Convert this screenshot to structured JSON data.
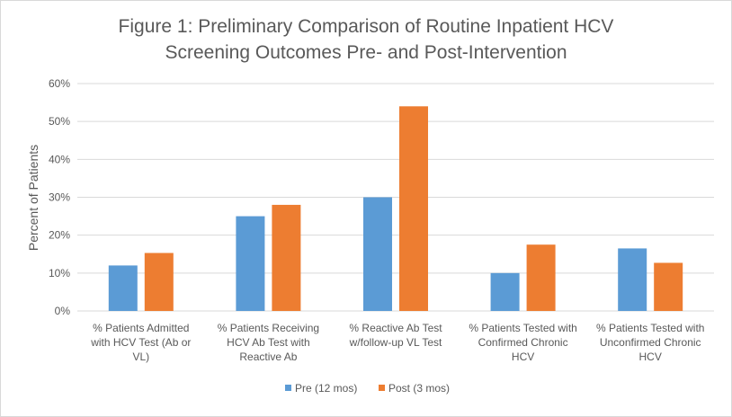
{
  "chart_data": {
    "type": "bar",
    "title_lines": [
      "Figure 1: Preliminary Comparison of Routine Inpatient HCV",
      "Screening Outcomes Pre- and Post-Intervention"
    ],
    "ylabel": "Percent of Patients",
    "xlabel": "",
    "ylim": [
      0,
      0.6
    ],
    "yticks": [
      "0%",
      "10%",
      "20%",
      "30%",
      "40%",
      "50%",
      "60%"
    ],
    "grid": true,
    "legend_position": "bottom",
    "categories": [
      [
        "% Patients Admitted",
        "with HCV Test (Ab or",
        "VL)"
      ],
      [
        "% Patients Receiving",
        "HCV Ab Test with",
        "Reactive Ab"
      ],
      [
        "% Reactive Ab Test",
        "w/follow-up VL Test"
      ],
      [
        "% Patients Tested with",
        "Confirmed Chronic",
        "HCV"
      ],
      [
        "% Patients Tested with",
        "Unconfirmed Chronic",
        "HCV"
      ]
    ],
    "series": [
      {
        "name": "Pre (12 mos)",
        "color": "#5b9bd5",
        "values": [
          0.12,
          0.25,
          0.3,
          0.1,
          0.165
        ]
      },
      {
        "name": "Post (3 mos)",
        "color": "#ed7d31",
        "values": [
          0.153,
          0.28,
          0.54,
          0.175,
          0.127
        ]
      }
    ]
  }
}
